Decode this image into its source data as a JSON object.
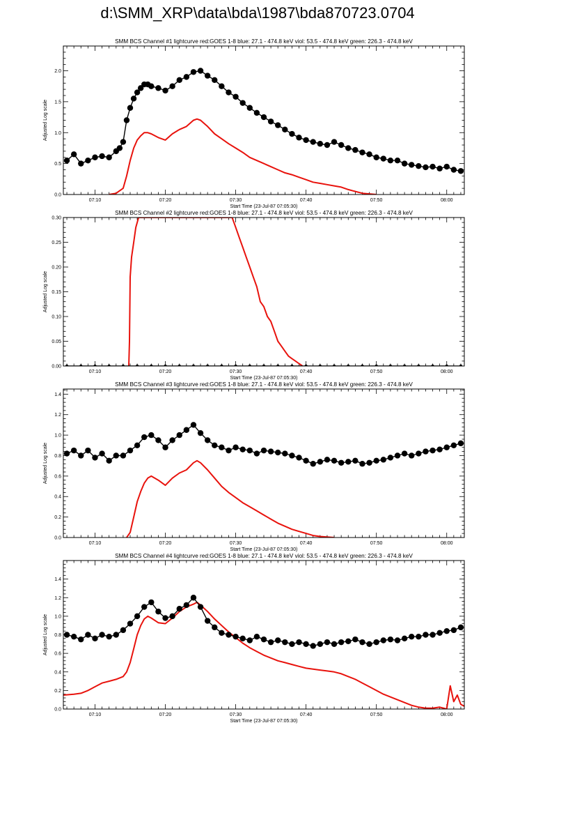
{
  "page_title": "d:\\SMM_XRP\\data\\bda\\1987\\bda870723.0704",
  "colors": {
    "goes": "#e8120c",
    "bcs": "#000000",
    "frame": "#000000"
  },
  "chart_data": [
    {
      "type": "line",
      "title": "SMM BCS Channel #1 lightcurve  red:GOES 1-8  blue: 27.1 - 474.8 keV  viol: 53.5 - 474.8 keV  green: 226.3 - 474.8 keV",
      "xlabel": "Start Time (23-Jul-87 07:05:30)",
      "ylabel": "Adjusted Log scale",
      "xlim_minutes": [
        5.5,
        62.5
      ],
      "x_ticks": [
        {
          "v": 10,
          "label": "07:10"
        },
        {
          "v": 20,
          "label": "07:20"
        },
        {
          "v": 30,
          "label": "07:30"
        },
        {
          "v": 40,
          "label": "07:40"
        },
        {
          "v": 50,
          "label": "07:50"
        },
        {
          "v": 60,
          "label": "08:00"
        }
      ],
      "ylim": [
        0,
        2.4
      ],
      "y_ticks": [
        {
          "v": 0,
          "label": "0.0"
        },
        {
          "v": 0.5,
          "label": "0.5"
        },
        {
          "v": 1.0,
          "label": "1.0"
        },
        {
          "v": 1.5,
          "label": "1.5"
        },
        {
          "v": 2.0,
          "label": "2.0"
        }
      ],
      "series": [
        {
          "color": "#000000",
          "marker": "circle",
          "x": [
            6,
            7,
            8,
            9,
            10,
            11,
            12,
            13,
            13.5,
            14,
            14.5,
            15,
            15.5,
            16,
            16.5,
            17,
            17.5,
            18,
            19,
            20,
            21,
            22,
            23,
            24,
            25,
            26,
            27,
            28,
            29,
            30,
            31,
            32,
            33,
            34,
            35,
            36,
            37,
            38,
            39,
            40,
            41,
            42,
            43,
            44,
            45,
            46,
            47,
            48,
            49,
            50,
            51,
            52,
            53,
            54,
            55,
            56,
            57,
            58,
            59,
            60,
            61,
            62
          ],
          "values": [
            0.55,
            0.65,
            0.5,
            0.55,
            0.6,
            0.62,
            0.6,
            0.7,
            0.75,
            0.85,
            1.2,
            1.4,
            1.55,
            1.65,
            1.72,
            1.78,
            1.78,
            1.75,
            1.72,
            1.68,
            1.75,
            1.85,
            1.9,
            1.98,
            2.0,
            1.92,
            1.85,
            1.75,
            1.65,
            1.58,
            1.48,
            1.4,
            1.32,
            1.25,
            1.18,
            1.12,
            1.05,
            0.98,
            0.92,
            0.88,
            0.85,
            0.82,
            0.8,
            0.85,
            0.8,
            0.75,
            0.72,
            0.68,
            0.65,
            0.6,
            0.58,
            0.55,
            0.55,
            0.5,
            0.48,
            0.46,
            0.44,
            0.45,
            0.42,
            0.45,
            0.4,
            0.38
          ]
        },
        {
          "color": "#e8120c",
          "marker": "none",
          "x": [
            12,
            13,
            14,
            14.5,
            15,
            15.5,
            16,
            16.5,
            17,
            17.5,
            18,
            19,
            20,
            21,
            22,
            23,
            24,
            24.5,
            25,
            26,
            27,
            28,
            29,
            30,
            31,
            32,
            33,
            34,
            35,
            36,
            37,
            38,
            39,
            40,
            41,
            42,
            43,
            44,
            45,
            46,
            47,
            48,
            49,
            50
          ],
          "values": [
            0.0,
            0.02,
            0.1,
            0.3,
            0.55,
            0.75,
            0.88,
            0.95,
            1.0,
            1.0,
            0.98,
            0.92,
            0.88,
            0.98,
            1.05,
            1.1,
            1.2,
            1.22,
            1.2,
            1.1,
            0.98,
            0.9,
            0.82,
            0.75,
            0.68,
            0.6,
            0.55,
            0.5,
            0.45,
            0.4,
            0.35,
            0.32,
            0.28,
            0.24,
            0.2,
            0.18,
            0.16,
            0.14,
            0.12,
            0.08,
            0.05,
            0.02,
            0.01,
            0.0
          ]
        }
      ]
    },
    {
      "type": "line",
      "title": "SMM BCS Channel #2 lightcurve  red:GOES 1-8  blue: 27.1 - 474.8 keV  viol: 53.5 - 474.8 keV  green: 226.3 - 474.8 keV",
      "xlabel": "Start Time (23-Jul-87 07:05:30)",
      "ylabel": "Adjusted Log scale",
      "xlim_minutes": [
        5.5,
        62.5
      ],
      "x_ticks": [
        {
          "v": 10,
          "label": "07:10"
        },
        {
          "v": 20,
          "label": "07:20"
        },
        {
          "v": 30,
          "label": "07:30"
        },
        {
          "v": 40,
          "label": "07:40"
        },
        {
          "v": 50,
          "label": "07:50"
        },
        {
          "v": 60,
          "label": "08:00"
        }
      ],
      "ylim": [
        0,
        0.3
      ],
      "y_ticks": [
        {
          "v": 0,
          "label": "0.00"
        },
        {
          "v": 0.05,
          "label": "0.05"
        },
        {
          "v": 0.1,
          "label": "0.10"
        },
        {
          "v": 0.15,
          "label": "0.15"
        },
        {
          "v": 0.2,
          "label": "0.20"
        },
        {
          "v": 0.25,
          "label": "0.25"
        },
        {
          "v": 0.3,
          "label": "0.30"
        }
      ],
      "series": [
        {
          "color": "#000000",
          "marker": "circle-small",
          "x": [
            6,
            8,
            10,
            12,
            14,
            16,
            18,
            20,
            22,
            24,
            26,
            28,
            30,
            32,
            34,
            36,
            38,
            40,
            42,
            44,
            46,
            48,
            50,
            52,
            54,
            56,
            58,
            60,
            62
          ],
          "values": [
            0,
            0,
            0,
            0,
            0,
            0,
            0,
            0,
            0,
            0,
            0,
            0,
            0,
            0,
            0,
            0,
            0,
            0,
            0,
            0,
            0,
            0,
            0,
            0,
            0,
            0,
            0,
            0,
            0
          ]
        },
        {
          "color": "#e8120c",
          "marker": "none",
          "x": [
            14.8,
            14.9,
            15.0,
            15.2,
            15.5,
            15.8,
            16.0,
            16.2,
            29.5,
            30.0,
            30.5,
            31.0,
            31.5,
            32.0,
            32.5,
            33.0,
            33.5,
            34.0,
            34.5,
            35.0,
            35.5,
            36.0,
            36.5,
            37.0,
            37.5,
            38.0,
            38.5,
            39.0,
            39.5
          ],
          "values": [
            0.0,
            0.05,
            0.18,
            0.22,
            0.25,
            0.28,
            0.29,
            0.3,
            0.3,
            0.28,
            0.26,
            0.24,
            0.22,
            0.2,
            0.18,
            0.16,
            0.13,
            0.12,
            0.1,
            0.09,
            0.07,
            0.05,
            0.04,
            0.03,
            0.02,
            0.015,
            0.01,
            0.005,
            0.0
          ]
        }
      ]
    },
    {
      "type": "line",
      "title": "SMM BCS Channel #3 lightcurve  red:GOES 1-8  blue: 27.1 - 474.8 keV  viol: 53.5 - 474.8 keV  green: 226.3 - 474.8 keV",
      "xlabel": "Start Time (23-Jul-87 07:05:30)",
      "ylabel": "Adjusted Log scale",
      "xlim_minutes": [
        5.5,
        62.5
      ],
      "x_ticks": [
        {
          "v": 10,
          "label": "07:10"
        },
        {
          "v": 20,
          "label": "07:20"
        },
        {
          "v": 30,
          "label": "07:30"
        },
        {
          "v": 40,
          "label": "07:40"
        },
        {
          "v": 50,
          "label": "07:50"
        },
        {
          "v": 60,
          "label": "08:00"
        }
      ],
      "ylim": [
        0,
        1.45
      ],
      "y_ticks": [
        {
          "v": 0,
          "label": "0.0"
        },
        {
          "v": 0.2,
          "label": "0.2"
        },
        {
          "v": 0.4,
          "label": "0.4"
        },
        {
          "v": 0.6,
          "label": "0.6"
        },
        {
          "v": 0.8,
          "label": "0.8"
        },
        {
          "v": 1.0,
          "label": "1.0"
        },
        {
          "v": 1.2,
          "label": "1.2"
        },
        {
          "v": 1.4,
          "label": "1.4"
        }
      ],
      "series": [
        {
          "color": "#000000",
          "marker": "circle",
          "x": [
            6,
            7,
            8,
            9,
            10,
            11,
            12,
            13,
            14,
            15,
            16,
            17,
            18,
            19,
            20,
            21,
            22,
            23,
            24,
            25,
            26,
            27,
            28,
            29,
            30,
            31,
            32,
            33,
            34,
            35,
            36,
            37,
            38,
            39,
            40,
            41,
            42,
            43,
            44,
            45,
            46,
            47,
            48,
            49,
            50,
            51,
            52,
            53,
            54,
            55,
            56,
            57,
            58,
            59,
            60,
            61,
            62
          ],
          "values": [
            0.82,
            0.85,
            0.8,
            0.85,
            0.78,
            0.82,
            0.75,
            0.8,
            0.8,
            0.85,
            0.9,
            0.98,
            1.0,
            0.95,
            0.88,
            0.95,
            1.0,
            1.05,
            1.1,
            1.02,
            0.95,
            0.9,
            0.88,
            0.85,
            0.88,
            0.86,
            0.85,
            0.82,
            0.85,
            0.84,
            0.83,
            0.82,
            0.8,
            0.78,
            0.75,
            0.72,
            0.74,
            0.76,
            0.75,
            0.73,
            0.74,
            0.75,
            0.72,
            0.73,
            0.75,
            0.76,
            0.78,
            0.8,
            0.82,
            0.8,
            0.82,
            0.84,
            0.85,
            0.86,
            0.88,
            0.9,
            0.92
          ]
        },
        {
          "color": "#e8120c",
          "marker": "none",
          "x": [
            14.5,
            15,
            15.5,
            16,
            16.5,
            17,
            17.5,
            18,
            19,
            20,
            21,
            22,
            23,
            24,
            24.5,
            25,
            26,
            27,
            28,
            29,
            30,
            31,
            32,
            33,
            34,
            35,
            36,
            37,
            38,
            39,
            40,
            41,
            42,
            43,
            44
          ],
          "values": [
            0.0,
            0.05,
            0.2,
            0.35,
            0.45,
            0.53,
            0.58,
            0.6,
            0.56,
            0.51,
            0.58,
            0.63,
            0.66,
            0.73,
            0.75,
            0.73,
            0.66,
            0.58,
            0.5,
            0.44,
            0.39,
            0.34,
            0.3,
            0.26,
            0.22,
            0.18,
            0.14,
            0.11,
            0.08,
            0.06,
            0.04,
            0.02,
            0.01,
            0.005,
            0.0
          ]
        }
      ]
    },
    {
      "type": "line",
      "title": "SMM BCS Channel #4 lightcurve  red:GOES 1-8  blue: 27.1 - 474.8 keV  viol: 53.5 - 474.8 keV  green: 226.3 - 474.8 keV",
      "xlabel": "Start Time (23-Jul-87 07:05:30)",
      "ylabel": "Adjusted Log scale",
      "xlim_minutes": [
        5.5,
        62.5
      ],
      "x_ticks": [
        {
          "v": 10,
          "label": "07:10"
        },
        {
          "v": 20,
          "label": "07:20"
        },
        {
          "v": 30,
          "label": "07:30"
        },
        {
          "v": 40,
          "label": "07:40"
        },
        {
          "v": 50,
          "label": "07:50"
        },
        {
          "v": 60,
          "label": "08:00"
        }
      ],
      "ylim": [
        0,
        1.6
      ],
      "y_ticks": [
        {
          "v": 0,
          "label": "0.0"
        },
        {
          "v": 0.2,
          "label": "0.2"
        },
        {
          "v": 0.4,
          "label": "0.4"
        },
        {
          "v": 0.6,
          "label": "0.6"
        },
        {
          "v": 0.8,
          "label": "0.8"
        },
        {
          "v": 1.0,
          "label": "1.0"
        },
        {
          "v": 1.2,
          "label": "1.2"
        },
        {
          "v": 1.4,
          "label": "1.4"
        }
      ],
      "series": [
        {
          "color": "#000000",
          "marker": "circle",
          "x": [
            6,
            7,
            8,
            9,
            10,
            11,
            12,
            13,
            14,
            15,
            16,
            17,
            18,
            19,
            20,
            21,
            22,
            23,
            24,
            25,
            26,
            27,
            28,
            29,
            30,
            31,
            32,
            33,
            34,
            35,
            36,
            37,
            38,
            39,
            40,
            41,
            42,
            43,
            44,
            45,
            46,
            47,
            48,
            49,
            50,
            51,
            52,
            53,
            54,
            55,
            56,
            57,
            58,
            59,
            60,
            61,
            62
          ],
          "values": [
            0.8,
            0.78,
            0.75,
            0.8,
            0.76,
            0.8,
            0.78,
            0.8,
            0.85,
            0.92,
            1.0,
            1.1,
            1.15,
            1.05,
            0.98,
            1.0,
            1.08,
            1.12,
            1.2,
            1.1,
            0.95,
            0.88,
            0.82,
            0.8,
            0.78,
            0.76,
            0.74,
            0.78,
            0.75,
            0.72,
            0.74,
            0.72,
            0.7,
            0.72,
            0.7,
            0.68,
            0.7,
            0.72,
            0.7,
            0.72,
            0.73,
            0.75,
            0.72,
            0.7,
            0.72,
            0.74,
            0.75,
            0.74,
            0.76,
            0.78,
            0.78,
            0.8,
            0.8,
            0.82,
            0.84,
            0.85,
            0.88
          ]
        },
        {
          "color": "#e8120c",
          "marker": "none",
          "x": [
            5.5,
            7,
            8,
            9,
            10,
            11,
            12,
            13,
            14,
            14.5,
            15,
            15.5,
            16,
            16.5,
            17,
            17.5,
            18,
            19,
            20,
            21,
            22,
            23,
            24,
            24.5,
            25,
            26,
            27,
            28,
            29,
            30,
            31,
            32,
            33,
            34,
            35,
            36,
            37,
            38,
            39,
            40,
            41,
            42,
            43,
            44,
            45,
            46,
            47,
            48,
            49,
            50,
            51,
            52,
            53,
            54,
            55,
            56,
            57,
            58,
            59,
            60,
            60.5,
            61,
            61.5,
            62,
            62.5
          ],
          "values": [
            0.15,
            0.16,
            0.17,
            0.2,
            0.24,
            0.28,
            0.3,
            0.32,
            0.35,
            0.4,
            0.5,
            0.65,
            0.8,
            0.9,
            0.97,
            1.0,
            0.98,
            0.93,
            0.92,
            0.98,
            1.05,
            1.1,
            1.13,
            1.15,
            1.12,
            1.05,
            0.97,
            0.9,
            0.83,
            0.77,
            0.71,
            0.66,
            0.62,
            0.58,
            0.55,
            0.52,
            0.5,
            0.48,
            0.46,
            0.44,
            0.43,
            0.42,
            0.41,
            0.4,
            0.38,
            0.35,
            0.32,
            0.28,
            0.24,
            0.2,
            0.16,
            0.13,
            0.1,
            0.07,
            0.04,
            0.02,
            0.01,
            0.01,
            0.02,
            0.0,
            0.25,
            0.08,
            0.15,
            0.05,
            0.03
          ]
        }
      ]
    }
  ]
}
